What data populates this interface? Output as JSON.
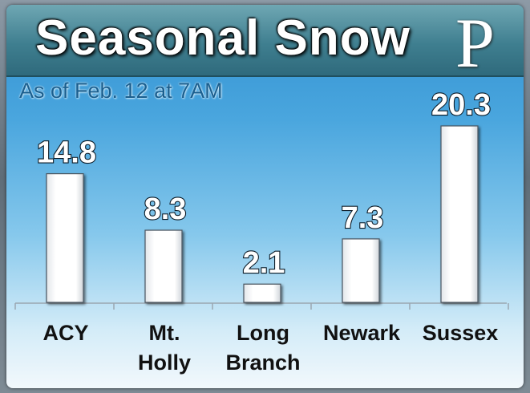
{
  "header": {
    "title": "Seasonal Snow",
    "logo_text": "P"
  },
  "subtitle": "As of Feb. 12 at 7AM",
  "colors": {
    "bar": "#ffffff",
    "header": "#3f7f90",
    "sky_top": "#2f8fd0"
  },
  "chart_data": {
    "type": "bar",
    "title": "Seasonal Snow",
    "subtitle": "As of Feb. 12 at 7AM",
    "categories": [
      "ACY",
      "Mt. Holly",
      "Long Branch",
      "Newark",
      "Sussex"
    ],
    "category_lines": [
      [
        "ACY"
      ],
      [
        "Mt.",
        "Holly"
      ],
      [
        "Long",
        "Branch"
      ],
      [
        "Newark"
      ],
      [
        "Sussex"
      ]
    ],
    "values": [
      14.8,
      8.3,
      2.1,
      7.3,
      20.3
    ],
    "value_labels": [
      "14.8",
      "8.3",
      "2.1",
      "7.3",
      "20.3"
    ],
    "ylim": [
      0,
      20.3
    ],
    "grid": false,
    "legend": "none"
  }
}
